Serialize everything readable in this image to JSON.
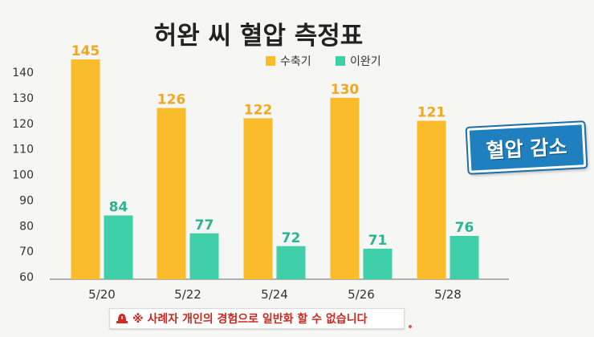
{
  "title": "허완 씨 혈압 측정표",
  "badge": "혈압 감소",
  "disclaimer": "※ 사례자 개인의 경험으로 일반화 할 수 없습니다",
  "colors": {
    "systolic": "#fbbc2c",
    "diastolic": "#3fcfa9",
    "systolic_label": "#f2a81d",
    "diastolic_label": "#29b592"
  },
  "chart_data": {
    "type": "bar",
    "title": "허완 씨 혈압 측정표",
    "categories": [
      "5/20",
      "5/22",
      "5/24",
      "5/26",
      "5/28"
    ],
    "series": [
      {
        "name": "수축기",
        "values": [
          145,
          126,
          122,
          130,
          121
        ]
      },
      {
        "name": "이완기",
        "values": [
          84,
          77,
          72,
          71,
          76
        ]
      }
    ],
    "yticks": [
      "60",
      "70",
      "80",
      "90",
      "100",
      "110",
      "120",
      "130",
      "140"
    ],
    "ylim": [
      60,
      147
    ],
    "grid": false,
    "legend": "top-right"
  }
}
